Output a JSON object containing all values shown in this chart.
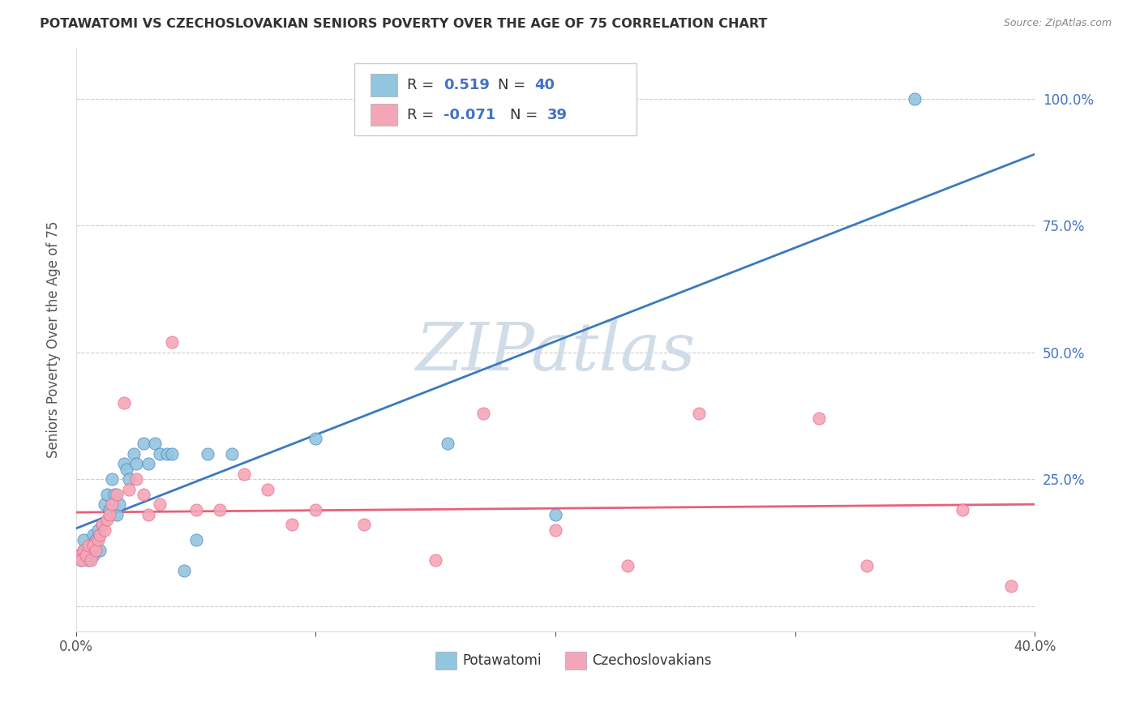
{
  "title": "POTAWATOMI VS CZECHOSLOVAKIAN SENIORS POVERTY OVER THE AGE OF 75 CORRELATION CHART",
  "source": "Source: ZipAtlas.com",
  "ylabel": "Seniors Poverty Over the Age of 75",
  "xlim": [
    0.0,
    0.4
  ],
  "ylim": [
    -0.05,
    1.1
  ],
  "blue_color": "#92c5de",
  "pink_color": "#f4a6b8",
  "blue_line_color": "#3a7abf",
  "pink_line_color": "#e8607a",
  "right_label_color": "#4472c4",
  "potawatomi_x": [
    0.001,
    0.002,
    0.003,
    0.003,
    0.004,
    0.005,
    0.005,
    0.006,
    0.007,
    0.007,
    0.008,
    0.009,
    0.01,
    0.011,
    0.012,
    0.013,
    0.014,
    0.015,
    0.016,
    0.017,
    0.018,
    0.02,
    0.021,
    0.022,
    0.024,
    0.025,
    0.028,
    0.03,
    0.033,
    0.035,
    0.038,
    0.04,
    0.045,
    0.05,
    0.055,
    0.065,
    0.1,
    0.155,
    0.2,
    0.35
  ],
  "potawatomi_y": [
    0.1,
    0.09,
    0.11,
    0.13,
    0.1,
    0.11,
    0.09,
    0.12,
    0.1,
    0.14,
    0.13,
    0.15,
    0.11,
    0.16,
    0.2,
    0.22,
    0.19,
    0.25,
    0.22,
    0.18,
    0.2,
    0.28,
    0.27,
    0.25,
    0.3,
    0.28,
    0.32,
    0.28,
    0.32,
    0.3,
    0.3,
    0.3,
    0.07,
    0.13,
    0.3,
    0.3,
    0.33,
    0.32,
    0.18,
    1.0
  ],
  "czechoslovakian_x": [
    0.001,
    0.002,
    0.003,
    0.004,
    0.005,
    0.006,
    0.007,
    0.008,
    0.009,
    0.01,
    0.011,
    0.012,
    0.013,
    0.014,
    0.015,
    0.017,
    0.02,
    0.022,
    0.025,
    0.028,
    0.03,
    0.035,
    0.04,
    0.05,
    0.06,
    0.07,
    0.08,
    0.09,
    0.1,
    0.12,
    0.15,
    0.17,
    0.2,
    0.23,
    0.26,
    0.31,
    0.33,
    0.37,
    0.39
  ],
  "czechoslovakian_y": [
    0.1,
    0.09,
    0.11,
    0.1,
    0.12,
    0.09,
    0.12,
    0.11,
    0.13,
    0.14,
    0.16,
    0.15,
    0.17,
    0.18,
    0.2,
    0.22,
    0.4,
    0.23,
    0.25,
    0.22,
    0.18,
    0.2,
    0.52,
    0.19,
    0.19,
    0.26,
    0.23,
    0.16,
    0.19,
    0.16,
    0.09,
    0.38,
    0.15,
    0.08,
    0.38,
    0.37,
    0.08,
    0.19,
    0.04
  ],
  "watermark_text": "ZIPatlas",
  "watermark_color": "#d0dde8",
  "legend_blue_label": "R =  0.519   N = 40",
  "legend_pink_label": "R = -0.071   N = 39",
  "bottom_legend_blue": "Potawatomi",
  "bottom_legend_pink": "Czechoslovakians"
}
